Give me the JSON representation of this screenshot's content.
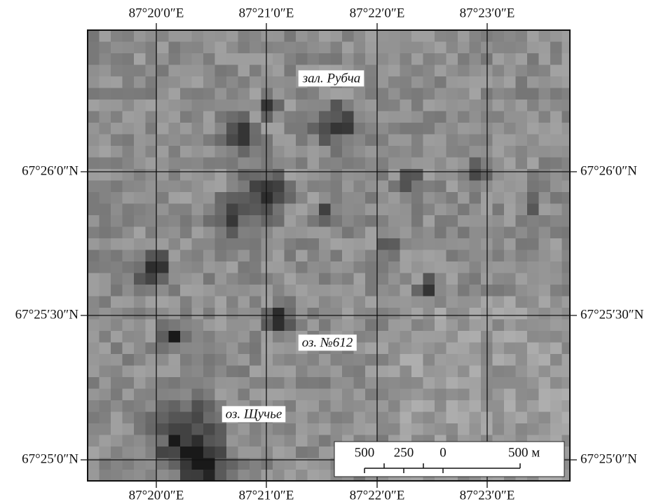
{
  "grid": {
    "top_labels": [
      "87°20′0″E",
      "87°21′0″E",
      "87°22′0″E",
      "87°23′0″E"
    ],
    "bottom_labels": [
      "87°20′0″E",
      "87°21′0″E",
      "87°22′0″E",
      "87°23′0″E"
    ],
    "left_labels": [
      "67°26′0″N",
      "67°25′30″N",
      "67°25′0″N"
    ],
    "right_labels": [
      "67°26′0″N",
      "67°25′30″N",
      "67°25′0″N"
    ]
  },
  "place_labels": [
    "зал. Рубча",
    "оз. №612",
    "оз. Щучье"
  ],
  "scale_bar": {
    "labels": [
      "500",
      "250",
      "0",
      "500 м"
    ]
  }
}
